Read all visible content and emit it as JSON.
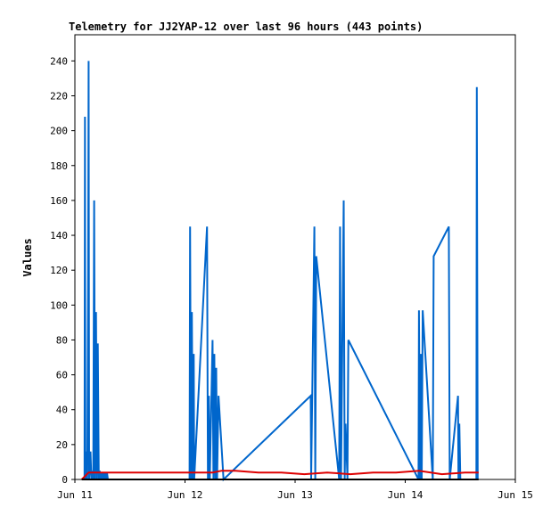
{
  "chart_data": {
    "type": "line",
    "title": "Telemetry for JJ2YAP-12 over last 96 hours (443 points)",
    "xlabel": "",
    "ylabel": "Values",
    "xlim": [
      0,
      96
    ],
    "ylim": [
      0,
      255
    ],
    "grid": false,
    "x_ticks": [
      {
        "value": 0,
        "label": "Jun 11"
      },
      {
        "value": 24,
        "label": "Jun 12"
      },
      {
        "value": 48,
        "label": "Jun 13"
      },
      {
        "value": 72,
        "label": "Jun 14"
      },
      {
        "value": 96,
        "label": "Jun 15"
      }
    ],
    "y_ticks": [
      0,
      20,
      40,
      60,
      80,
      100,
      120,
      140,
      160,
      180,
      200,
      220,
      240
    ],
    "series": [
      {
        "color": "#0066cc",
        "x": [
          2.1,
          2.2,
          2.3,
          2.6,
          2.7,
          2.9,
          3.0,
          3.1,
          3.2,
          3.4,
          3.6,
          3.8,
          4.0,
          4.2,
          4.4,
          4.6,
          4.8,
          5.0,
          5.2,
          5.4,
          5.6,
          5.8,
          6.0,
          6.1,
          6.2,
          6.3,
          6.4,
          6.6,
          6.8,
          7.0,
          7.2,
          25.0,
          25.1,
          25.3,
          25.5,
          25.7,
          25.9,
          26.0,
          28.8,
          29.0,
          29.2,
          29.4,
          30.0,
          30.2,
          30.4,
          30.6,
          30.8,
          31.0,
          31.3,
          32.4,
          51.4,
          51.5,
          52.2,
          52.4,
          52.6,
          57.6,
          57.8,
          58.0,
          58.6,
          58.8,
          59.0,
          59.4,
          59.6,
          74.9,
          75.0,
          75.2,
          75.4,
          75.6,
          75.8,
          78.0,
          78.2,
          81.5,
          81.7,
          83.5,
          83.6,
          83.8,
          84.0,
          87.5,
          87.6,
          87.8
        ],
        "values": [
          0,
          208,
          0,
          16,
          0,
          120,
          240,
          0,
          5,
          16,
          0,
          5,
          0,
          160,
          0,
          96,
          0,
          78,
          0,
          5,
          0,
          4,
          0,
          4,
          0,
          4,
          0,
          4,
          0,
          4,
          0,
          0,
          145,
          0,
          96,
          0,
          72,
          0,
          145,
          0,
          48,
          0,
          80,
          0,
          72,
          0,
          64,
          0,
          48,
          0,
          48,
          0,
          145,
          0,
          128,
          0,
          145,
          0,
          160,
          0,
          32,
          0,
          80,
          0,
          97,
          0,
          72,
          0,
          97,
          0,
          128,
          145,
          0,
          48,
          0,
          32,
          0,
          0,
          225,
          0
        ]
      },
      {
        "color": "#dd0000",
        "x": [
          1.5,
          3.0,
          5.0,
          7.0,
          10.0,
          15.0,
          20.0,
          25.0,
          30.0,
          32.0,
          35.0,
          40.0,
          45.0,
          50.0,
          55.0,
          60.0,
          65.0,
          70.0,
          75.0,
          80.0,
          85.0,
          88.0
        ],
        "values": [
          0,
          4,
          4,
          4,
          4,
          4,
          4,
          4,
          4,
          5,
          5,
          4,
          4,
          3,
          4,
          3,
          4,
          4,
          5,
          3,
          4,
          4
        ]
      },
      {
        "color": "#000000",
        "x": [
          1.5,
          88.0
        ],
        "values": [
          0,
          0
        ]
      }
    ]
  }
}
